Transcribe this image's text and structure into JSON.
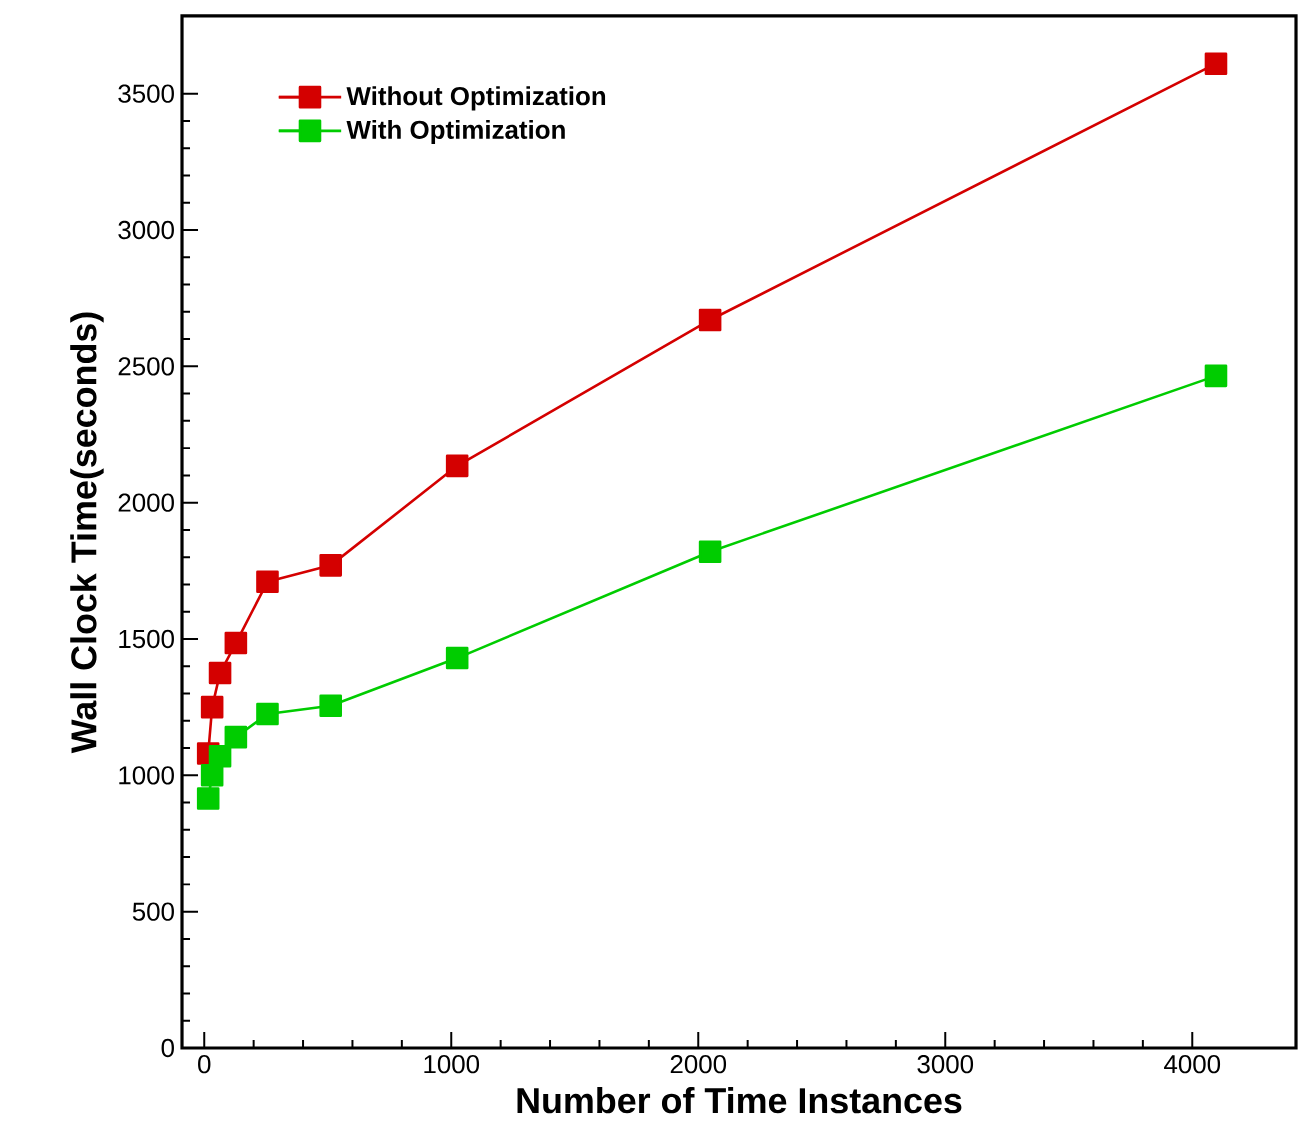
{
  "chart_data": {
    "type": "line",
    "xlabel": "Number of Time Instances",
    "ylabel": "Wall Clock Time(seconds)",
    "xlim": [
      -90,
      4420
    ],
    "ylim": [
      0,
      3785
    ],
    "xticks": [
      0,
      1000,
      2000,
      3000,
      4000
    ],
    "yticks": [
      0,
      500,
      1000,
      1500,
      2000,
      2500,
      3000,
      3500
    ],
    "grid": false,
    "legend": "top left",
    "marker": "square",
    "line_style": "solid",
    "series": [
      {
        "name": "Without Optimization",
        "color": "#d40000",
        "x": [
          16,
          32,
          64,
          128,
          256,
          512,
          1024,
          2048,
          4096
        ],
        "values": [
          1080,
          1250,
          1375,
          1485,
          1710,
          1770,
          2135,
          2670,
          3610
        ]
      },
      {
        "name": "With Optimization",
        "color": "#00cc00",
        "x": [
          16,
          32,
          64,
          128,
          256,
          512,
          1024,
          2048,
          4096
        ],
        "values": [
          915,
          1000,
          1070,
          1140,
          1225,
          1255,
          1430,
          1820,
          2465
        ]
      }
    ]
  }
}
